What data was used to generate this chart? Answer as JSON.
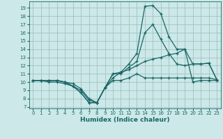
{
  "bg_color": "#cce8e8",
  "grid_color": "#99bbbb",
  "line_color": "#1a6666",
  "x_label": "Humidex (Indice chaleur)",
  "xlim": [
    -0.5,
    23.5
  ],
  "ylim": [
    6.8,
    19.8
  ],
  "yticks": [
    7,
    8,
    9,
    10,
    11,
    12,
    13,
    14,
    15,
    16,
    17,
    18,
    19
  ],
  "xticks": [
    0,
    1,
    2,
    3,
    4,
    5,
    6,
    7,
    8,
    9,
    10,
    11,
    12,
    13,
    14,
    15,
    16,
    17,
    18,
    19,
    20,
    21,
    22,
    23
  ],
  "series": [
    [
      10.2,
      10.2,
      10.2,
      10.2,
      10.0,
      9.8,
      9.2,
      8.0,
      7.5,
      9.3,
      10.5,
      11.2,
      11.5,
      12.0,
      12.5,
      12.8,
      13.0,
      13.3,
      13.5,
      14.0,
      10.0,
      10.2,
      10.2,
      10.2
    ],
    [
      10.2,
      10.2,
      10.2,
      10.2,
      10.0,
      9.5,
      8.7,
      7.5,
      7.5,
      9.3,
      11.0,
      11.2,
      12.2,
      13.5,
      19.2,
      19.3,
      18.3,
      15.5,
      14.0,
      14.0,
      12.2,
      12.2,
      12.3,
      10.3
    ],
    [
      10.2,
      10.2,
      10.2,
      10.2,
      10.0,
      9.5,
      8.7,
      7.5,
      7.5,
      9.3,
      11.0,
      11.0,
      11.8,
      12.5,
      16.0,
      17.0,
      15.2,
      13.5,
      12.2,
      12.0,
      12.2,
      12.2,
      12.3,
      10.3
    ],
    [
      10.2,
      10.2,
      10.0,
      10.0,
      9.8,
      9.5,
      9.0,
      7.8,
      7.5,
      9.3,
      10.2,
      10.2,
      10.5,
      11.0,
      10.5,
      10.5,
      10.5,
      10.5,
      10.5,
      10.5,
      10.5,
      10.5,
      10.5,
      10.3
    ]
  ]
}
